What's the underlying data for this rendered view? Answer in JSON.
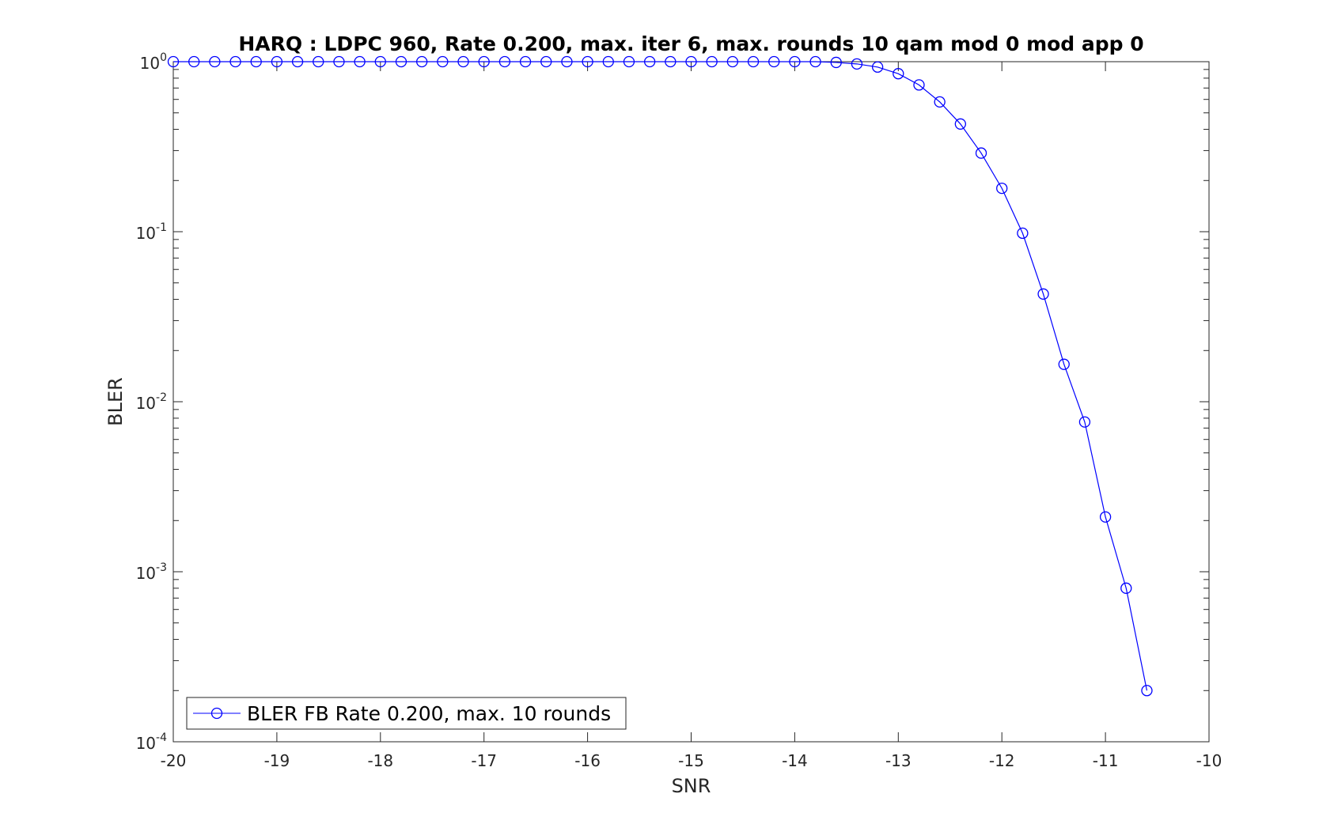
{
  "chart_data": {
    "type": "line",
    "title": "HARQ : LDPC 960, Rate 0.200, max. iter 6, max. rounds 10 qam mod 0 mod app 0",
    "xlabel": "SNR",
    "ylabel": "BLER",
    "xlim": [
      -20,
      -10
    ],
    "ylim": [
      0.0001,
      1
    ],
    "yscale": "log",
    "grid": false,
    "x_ticks": [
      -20,
      -19,
      -18,
      -17,
      -16,
      -15,
      -14,
      -13,
      -12,
      -11,
      -10
    ],
    "x_tick_labels": [
      "-20",
      "-19",
      "-18",
      "-17",
      "-16",
      "-15",
      "-14",
      "-13",
      "-12",
      "-11",
      "-10"
    ],
    "y_ticks": [
      {
        "value": 1,
        "base": "10",
        "exp": "0"
      },
      {
        "value": 0.1,
        "base": "10",
        "exp": "-1"
      },
      {
        "value": 0.01,
        "base": "10",
        "exp": "-2"
      },
      {
        "value": 0.001,
        "base": "10",
        "exp": "-3"
      },
      {
        "value": 0.0001,
        "base": "10",
        "exp": "-4"
      }
    ],
    "legend_position": "bottom-left",
    "series": [
      {
        "name": "BLER FB Rate 0.200, max. 10 rounds",
        "color": "#0000ff",
        "marker": "circle",
        "x": [
          -20,
          -19.8,
          -19.6,
          -19.4,
          -19.2,
          -19,
          -18.8,
          -18.6,
          -18.4,
          -18.2,
          -18,
          -17.8,
          -17.6,
          -17.4,
          -17.2,
          -17,
          -16.8,
          -16.6,
          -16.4,
          -16.2,
          -16,
          -15.8,
          -15.6,
          -15.4,
          -15.2,
          -15,
          -14.8,
          -14.6,
          -14.4,
          -14.2,
          -14,
          -13.8,
          -13.6,
          -13.4,
          -13.2,
          -13,
          -12.8,
          -12.6,
          -12.4,
          -12.2,
          -12,
          -11.8,
          -11.6,
          -11.4,
          -11.2,
          -11,
          -10.8,
          -10.6
        ],
        "y": [
          1,
          1,
          1,
          1,
          1,
          1,
          1,
          1,
          1,
          1,
          1,
          1,
          1,
          1,
          1,
          1,
          1,
          1,
          1,
          1,
          1,
          1,
          1,
          1,
          1,
          1,
          1,
          1,
          1,
          1,
          1,
          1,
          0.99,
          0.97,
          0.93,
          0.85,
          0.73,
          0.58,
          0.43,
          0.29,
          0.18,
          0.098,
          0.043,
          0.0166,
          0.0076,
          0.0021,
          0.0008,
          0.0002
        ]
      }
    ]
  }
}
